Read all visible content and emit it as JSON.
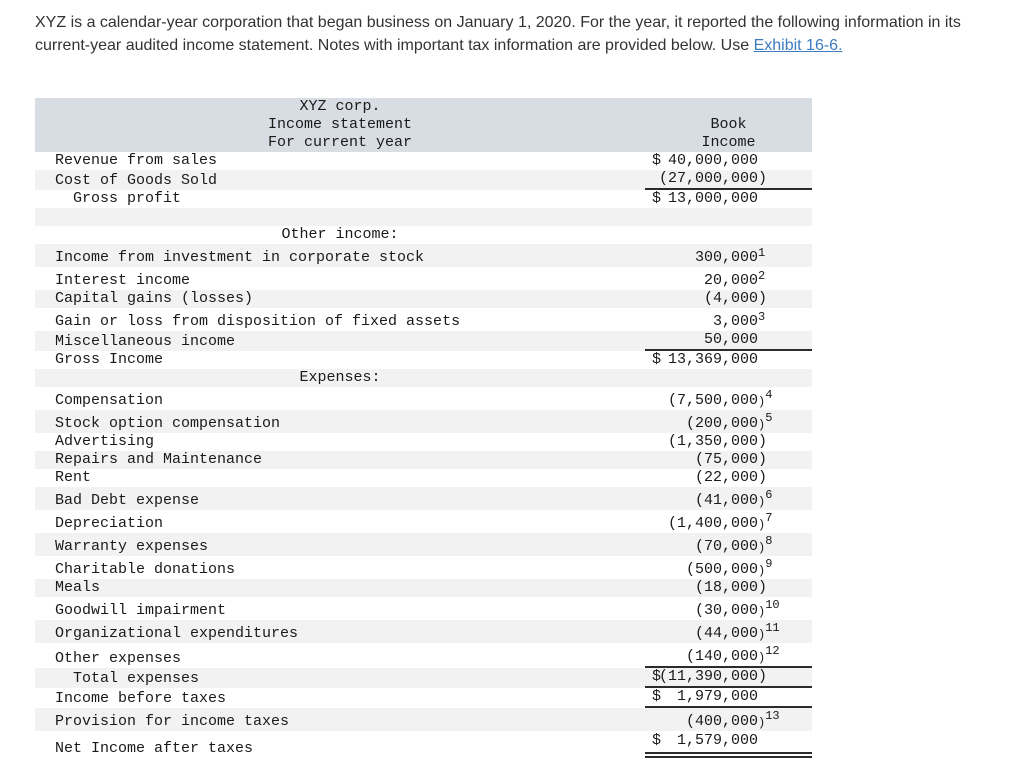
{
  "colors": {
    "link": "#3d7bbf",
    "header_bg": "#d8dce3",
    "stripe": "#f2f2f2",
    "rule": "#2b2b2b",
    "text": "#1a1a1a"
  },
  "intro": {
    "text": "XYZ is a calendar-year corporation that began business on January 1, 2020. For the year, it reported the following information in its current-year audited income statement. Notes with important tax information are provided below. Use ",
    "link_text": "Exhibit 16-6."
  },
  "statement": {
    "title_lines": [
      "XYZ corp.",
      "Income statement",
      "For current year"
    ],
    "value_header_lines": [
      "Book",
      "Income"
    ],
    "rows": [
      {
        "type": "item",
        "label": "Revenue from sales",
        "value": "$ 40,000,000"
      },
      {
        "type": "item",
        "label": "Cost of Goods Sold",
        "value": "(27,000,000)",
        "line": "single"
      },
      {
        "type": "item",
        "label": "Gross profit",
        "indent": true,
        "value": "$ 13,000,000"
      },
      {
        "type": "blank"
      },
      {
        "type": "section",
        "label": "Other income:"
      },
      {
        "type": "item",
        "label": "Income from investment in corporate stock",
        "value": "300,000",
        "sup": "1"
      },
      {
        "type": "item",
        "label": "Interest income",
        "value": "20,000",
        "sup": "2"
      },
      {
        "type": "item",
        "label": "Capital gains (losses)",
        "value": "(4,000)"
      },
      {
        "type": "item",
        "label": "Gain or loss from disposition of fixed assets",
        "value": "3,000",
        "sup": "3"
      },
      {
        "type": "item",
        "label": "Miscellaneous income",
        "value": "50,000",
        "line": "single"
      },
      {
        "type": "item",
        "label": "Gross Income",
        "value": "$ 13,369,000"
      },
      {
        "type": "section",
        "label": "Expenses:"
      },
      {
        "type": "item",
        "label": "Compensation",
        "value": "(7,500,000)",
        "sup": "4"
      },
      {
        "type": "item",
        "label": "Stock option compensation",
        "value": "(200,000)",
        "sup": "5"
      },
      {
        "type": "item",
        "label": "Advertising",
        "value": "(1,350,000)"
      },
      {
        "type": "item",
        "label": "Repairs and Maintenance",
        "value": "(75,000)"
      },
      {
        "type": "item",
        "label": "Rent",
        "value": "(22,000)"
      },
      {
        "type": "item",
        "label": "Bad Debt expense",
        "value": "(41,000)",
        "sup": "6"
      },
      {
        "type": "item",
        "label": "Depreciation",
        "value": "(1,400,000)",
        "sup": "7"
      },
      {
        "type": "item",
        "label": "Warranty expenses",
        "value": "(70,000)",
        "sup": "8"
      },
      {
        "type": "item",
        "label": "Charitable donations",
        "value": "(500,000)",
        "sup": "9"
      },
      {
        "type": "item",
        "label": "Meals",
        "value": "(18,000)"
      },
      {
        "type": "item",
        "label": "Goodwill impairment",
        "value": "(30,000)",
        "sup": "10"
      },
      {
        "type": "item",
        "label": "Organizational expenditures",
        "value": "(44,000)",
        "sup": "11"
      },
      {
        "type": "item",
        "label": "Other expenses",
        "value": "(140,000)",
        "sup": "12",
        "line": "single"
      },
      {
        "type": "item",
        "label": "Total expenses",
        "indent": true,
        "value": "$(11,390,000)",
        "line": "single"
      },
      {
        "type": "item",
        "label": "Income before taxes",
        "value": "$ 1,979,000",
        "line": "single"
      },
      {
        "type": "item",
        "label": "Provision for income taxes",
        "value": "(400,000)",
        "sup": "13"
      },
      {
        "type": "item",
        "label": "Net Income after taxes",
        "value": "$ 1,579,000",
        "line": "double"
      }
    ]
  }
}
